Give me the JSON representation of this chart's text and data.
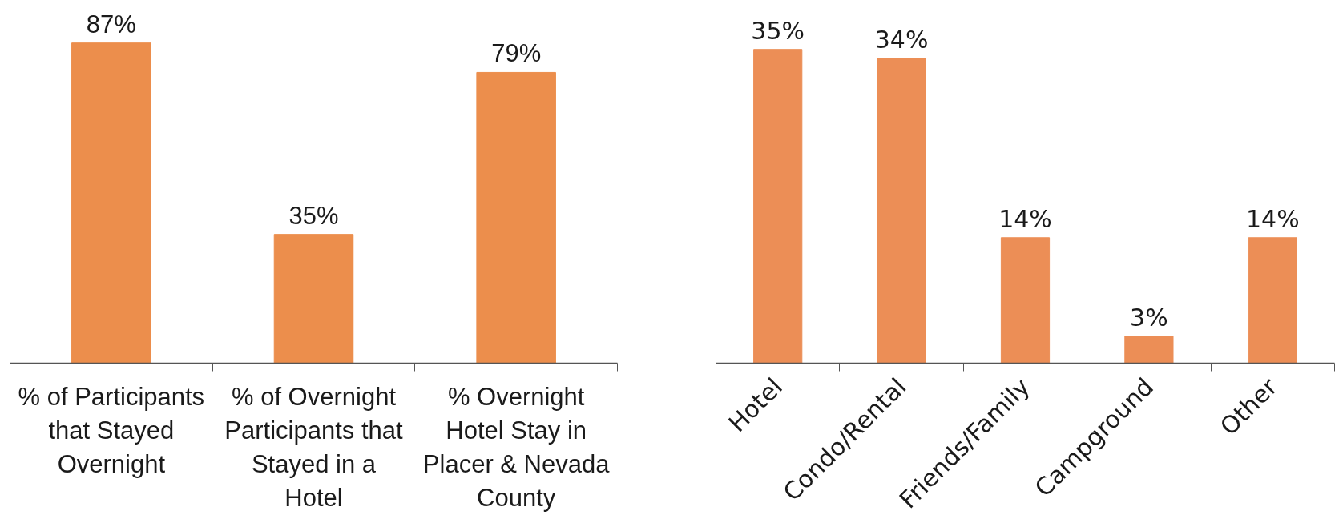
{
  "chart_data": [
    {
      "type": "bar",
      "categories": [
        "% of Participants\nthat Stayed\nOvernight",
        "% of Overnight\nParticipants that\nStayed in a\nHotel",
        "% Overnight\nHotel Stay in\nPlacer & Nevada\nCounty"
      ],
      "values": [
        87,
        35,
        79
      ],
      "color": "#ec8e4c",
      "value_labels": [
        "87%",
        "35%",
        "79%"
      ]
    },
    {
      "type": "bar",
      "categories": [
        "Hotel",
        "Condo/Rental",
        "Friends/Family",
        "Campground",
        "Other"
      ],
      "values": [
        35,
        34,
        14,
        3,
        14
      ],
      "color": "#ec8e56",
      "value_labels": [
        "35%",
        "34%",
        "14%",
        "3%",
        "14%"
      ]
    }
  ]
}
